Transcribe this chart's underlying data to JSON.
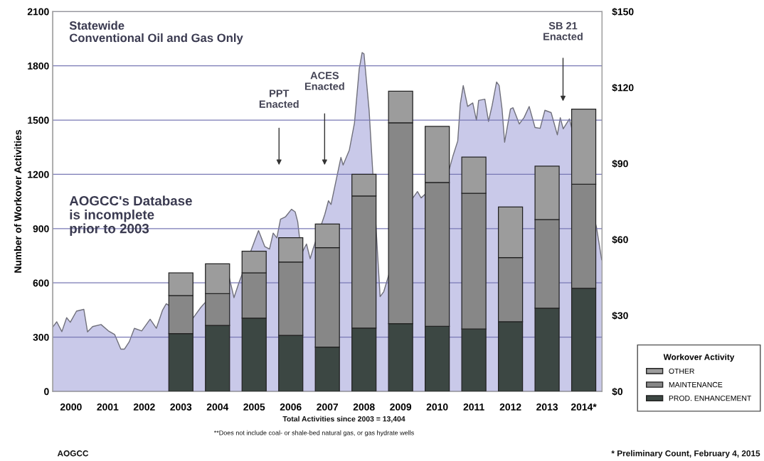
{
  "chart_data": {
    "type": "bar",
    "stacked": true,
    "ylabel": "Number of Workover Activities",
    "legend_title": "Workover Activity",
    "xlim": [
      1999.5,
      2014.5
    ],
    "xticks": [
      2000,
      2001,
      2002,
      2003,
      2004,
      2005,
      2006,
      2007,
      2008,
      2009,
      2010,
      2011,
      2012,
      2013,
      {
        "value": 2014,
        "label": "2014*"
      }
    ],
    "ylim": [
      0,
      2100
    ],
    "yticks": [
      0,
      300,
      600,
      900,
      1200,
      1500,
      1800,
      2100
    ],
    "y2lim": [
      0,
      150
    ],
    "y2ticks": [
      {
        "value": 0,
        "label": "$0"
      },
      {
        "value": 30,
        "label": "$30"
      },
      {
        "value": 60,
        "label": "$60"
      },
      {
        "value": 90,
        "label": "$90"
      },
      {
        "value": 120,
        "label": "$120"
      },
      {
        "value": 150,
        "label": "$150"
      }
    ],
    "grid": "y",
    "legend": "bottom right",
    "series": [
      {
        "name": "PROD. ENHANCEMENT",
        "color": "#3c4743",
        "x": [
          2003,
          2004,
          2005,
          2006,
          2007,
          2008,
          2009,
          2010,
          2011,
          2012,
          2013,
          2014
        ],
        "values": [
          320,
          365,
          405,
          310,
          245,
          350,
          375,
          360,
          345,
          385,
          460,
          570
        ]
      },
      {
        "name": "MAINTENANCE",
        "color": "#878787",
        "x": [
          2003,
          2004,
          2005,
          2006,
          2007,
          2008,
          2009,
          2010,
          2011,
          2012,
          2013,
          2014
        ],
        "values": [
          210,
          175,
          250,
          405,
          550,
          730,
          1110,
          795,
          750,
          355,
          490,
          575
        ]
      },
      {
        "name": "OTHER",
        "color": "#9c9c9c",
        "x": [
          2003,
          2004,
          2005,
          2006,
          2007,
          2008,
          2009,
          2010,
          2011,
          2012,
          2013,
          2014
        ],
        "values": [
          125,
          165,
          120,
          135,
          130,
          120,
          175,
          310,
          200,
          280,
          295,
          415
        ]
      },
      {
        "type": "area",
        "axis": "y2",
        "color": "#c9c9e9",
        "x": [
          1999.5,
          1999.61,
          1999.75,
          1999.88,
          1999.98,
          2000.15,
          2000.35,
          2000.45,
          2000.59,
          2000.82,
          2001.02,
          2001.19,
          2001.36,
          2001.46,
          2001.59,
          2001.73,
          2001.93,
          2002.16,
          2002.33,
          2002.5,
          2002.6,
          2003.31,
          2003.54,
          2004.31,
          2004.45,
          2004.58,
          2005.12,
          2005.29,
          2005.42,
          2005.52,
          2005.62,
          2005.72,
          2005.86,
          2006.02,
          2006.12,
          2006.19,
          2006.29,
          2006.43,
          2006.53,
          2006.61,
          2006.93,
          2007.03,
          2007.1,
          2007.37,
          2007.43,
          2007.6,
          2007.74,
          2007.87,
          2007.95,
          2008.0,
          2008.14,
          2008.24,
          2008.44,
          2008.54,
          2009.29,
          2009.46,
          2009.56,
          2010.3,
          2010.43,
          2010.56,
          2010.63,
          2010.71,
          2010.83,
          2010.97,
          2011.07,
          2011.13,
          2011.3,
          2011.4,
          2011.5,
          2011.62,
          2011.69,
          2011.77,
          2011.84,
          2012.0,
          2012.07,
          2012.24,
          2012.37,
          2012.51,
          2012.67,
          2012.81,
          2012.94,
          2013.11,
          2013.28,
          2013.36,
          2013.44,
          2013.61,
          2014.35,
          2014.49
        ],
        "values": [
          25.4,
          27.5,
          23.6,
          29.1,
          27.3,
          31.7,
          32.4,
          23.5,
          25.6,
          26.4,
          23.9,
          22.5,
          16.7,
          16.7,
          19.6,
          24.9,
          23.9,
          28.5,
          24.9,
          32.1,
          34.6,
          28.5,
          33.1,
          45.6,
          37.0,
          42.7,
          63.5,
          57.2,
          56.2,
          62.5,
          60.6,
          68.0,
          69.0,
          71.9,
          70.9,
          67.0,
          54.3,
          58.2,
          52.4,
          56.3,
          69.9,
          75.3,
          73.8,
          92.4,
          89.4,
          95.3,
          106.0,
          127.4,
          133.8,
          133.3,
          110.9,
          86.5,
          37.4,
          39.4,
          75.5,
          78.9,
          76.4,
          86.2,
          93.0,
          98.9,
          113.5,
          120.8,
          112.5,
          113.9,
          107.1,
          114.9,
          115.4,
          106.6,
          113.0,
          122.2,
          120.8,
          111.5,
          98.4,
          111.5,
          112.0,
          105.6,
          108.1,
          112.5,
          104.2,
          103.9,
          111.0,
          110.1,
          101.3,
          108.1,
          103.7,
          107.6,
          64.7,
          52.0
        ]
      }
    ],
    "annotations": [
      "Statewide\nConventional Oil and Gas Only",
      "AOGCC's Database\nis incomplete\nprior to 2003",
      "PPT\nEnacted",
      "ACES\nEnacted",
      "SB 21\nEnacted",
      "Total Activities since 2003 = 13,404",
      "**Does not include coal- or shale-bed natural gas, or gas hydrate wells",
      "AOGCC",
      "* Preliminary Count, February 4, 2015"
    ]
  }
}
